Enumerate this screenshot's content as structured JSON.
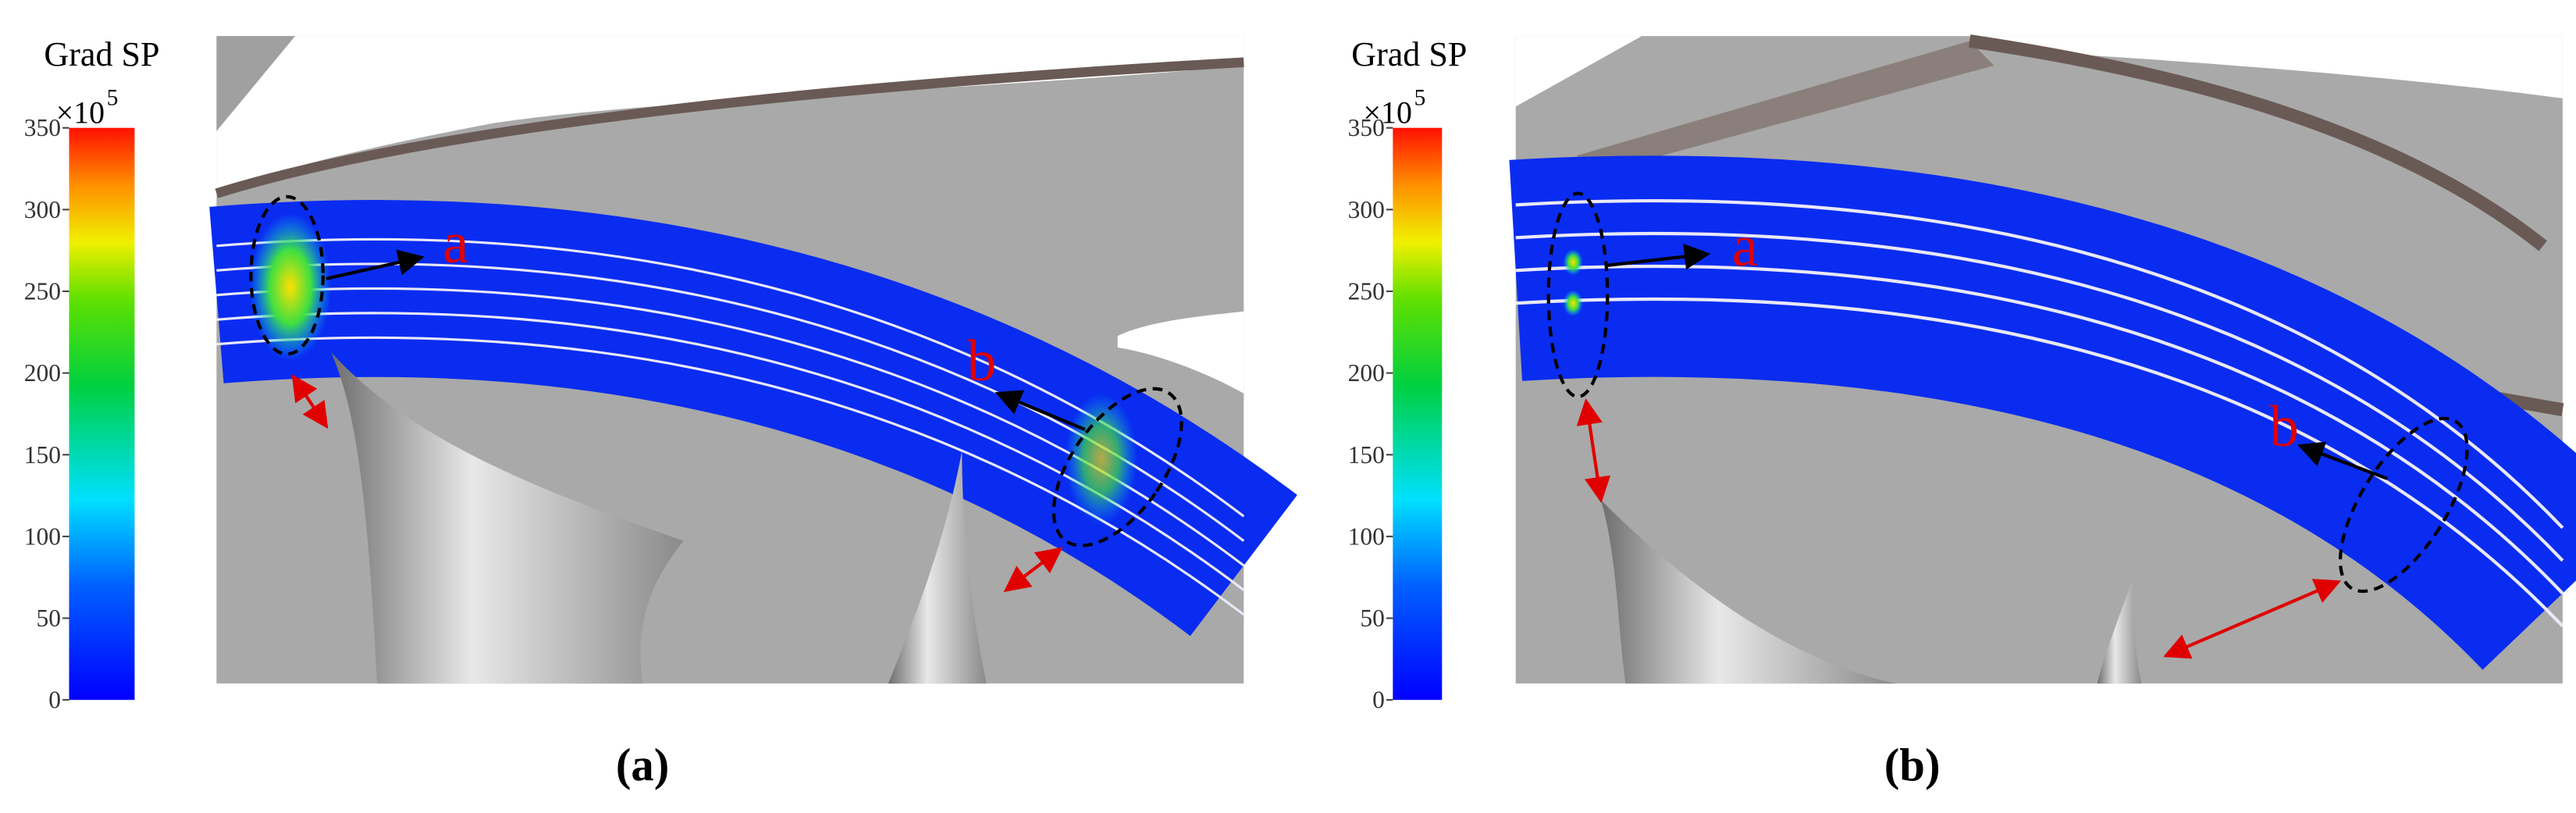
{
  "panels": [
    {
      "colorbar": {
        "title": "Grad SP",
        "multiplier": "×10",
        "exponent": "5",
        "range": [
          0,
          350
        ],
        "ticks": [
          0,
          50,
          100,
          150,
          200,
          250,
          300,
          350
        ]
      },
      "annotations": [
        "a",
        "b"
      ],
      "caption": "(a)"
    },
    {
      "colorbar": {
        "title": "Grad SP",
        "multiplier": "×10",
        "exponent": "5",
        "range": [
          0,
          350
        ],
        "ticks": [
          0,
          50,
          100,
          150,
          200,
          250,
          300,
          350
        ]
      },
      "annotations": [
        "a",
        "b"
      ],
      "caption": "(b)"
    }
  ]
}
